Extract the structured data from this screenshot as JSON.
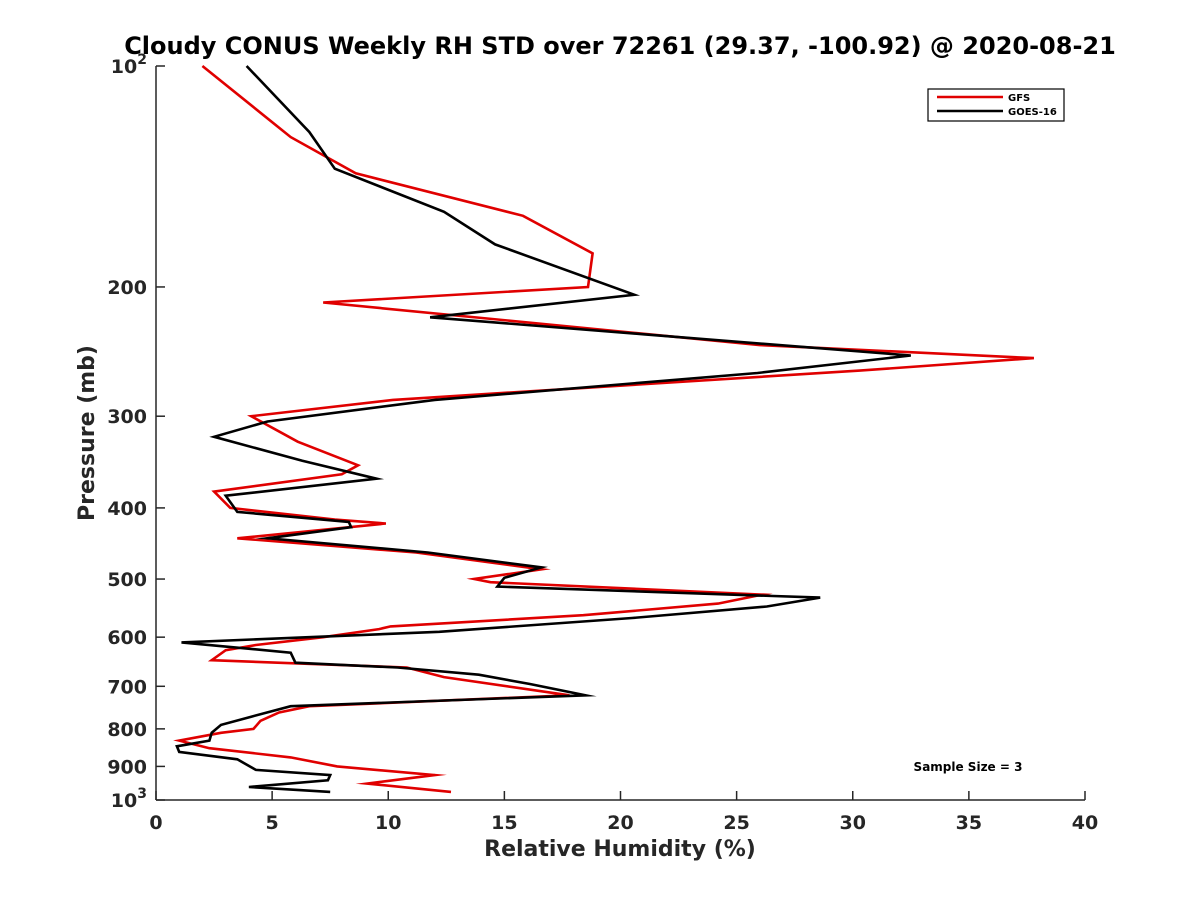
{
  "chart_data": {
    "type": "line",
    "title": "Cloudy CONUS Weekly RH STD over 72261 (29.37, -100.92) @ 2020-08-21",
    "xlabel": "Relative Humidity (%)",
    "ylabel": "Pressure (mb)",
    "xlim": [
      0,
      40
    ],
    "ylim": [
      100,
      1000
    ],
    "y_scale": "log",
    "y_reversed": true,
    "x_ticks": [
      0,
      5,
      10,
      15,
      20,
      25,
      30,
      35,
      40
    ],
    "x_tick_labels": [
      "0",
      "5",
      "10",
      "15",
      "20",
      "25",
      "30",
      "35",
      "40"
    ],
    "y_ticks": [
      100,
      200,
      300,
      400,
      500,
      600,
      700,
      800,
      900,
      1000
    ],
    "y_tick_labels": [
      {
        "base": "10",
        "exp": "2"
      },
      {
        "base": "200"
      },
      {
        "base": "300"
      },
      {
        "base": "400"
      },
      {
        "base": "500"
      },
      {
        "base": "600"
      },
      {
        "base": "700"
      },
      {
        "base": "800"
      },
      {
        "base": "900"
      },
      {
        "base": "10",
        "exp": "3"
      }
    ],
    "grid": false,
    "legend_position": "top-right",
    "annotation": "Sample Size = 3",
    "series": [
      {
        "name": "GFS",
        "color": "#e00000",
        "points": [
          [
            12.7,
            975
          ],
          [
            9.1,
            950
          ],
          [
            12.0,
            925
          ],
          [
            7.8,
            900
          ],
          [
            5.8,
            875
          ],
          [
            2.3,
            850
          ],
          [
            1.0,
            830
          ],
          [
            2.8,
            810
          ],
          [
            4.2,
            800
          ],
          [
            4.5,
            780
          ],
          [
            5.3,
            760
          ],
          [
            6.6,
            745
          ],
          [
            17.8,
            720
          ],
          [
            12.4,
            680
          ],
          [
            10.8,
            660
          ],
          [
            2.4,
            645
          ],
          [
            3.0,
            625
          ],
          [
            4.3,
            615
          ],
          [
            7.2,
            600
          ],
          [
            9.6,
            585
          ],
          [
            10.1,
            580
          ],
          [
            18.4,
            560
          ],
          [
            24.2,
            540
          ],
          [
            26.1,
            525
          ],
          [
            14.4,
            505
          ],
          [
            13.7,
            500
          ],
          [
            16.6,
            485
          ],
          [
            11.2,
            460
          ],
          [
            3.5,
            440
          ],
          [
            9.9,
            420
          ],
          [
            7.7,
            415
          ],
          [
            3.2,
            400
          ],
          [
            2.5,
            380
          ],
          [
            8.0,
            360
          ],
          [
            8.7,
            350
          ],
          [
            6.1,
            325
          ],
          [
            4.1,
            300
          ],
          [
            10.2,
            285
          ],
          [
            30.3,
            260
          ],
          [
            37.8,
            250
          ],
          [
            26.0,
            240
          ],
          [
            7.2,
            210
          ],
          [
            18.6,
            200
          ],
          [
            18.8,
            180
          ],
          [
            15.8,
            160
          ],
          [
            8.6,
            140
          ],
          [
            5.8,
            125
          ],
          [
            2.0,
            100
          ]
        ]
      },
      {
        "name": "GOES-16",
        "color": "#000000",
        "points": [
          [
            7.5,
            975
          ],
          [
            4.0,
            960
          ],
          [
            7.4,
            940
          ],
          [
            7.5,
            925
          ],
          [
            4.3,
            910
          ],
          [
            3.5,
            880
          ],
          [
            1.0,
            860
          ],
          [
            0.9,
            845
          ],
          [
            2.3,
            830
          ],
          [
            2.4,
            810
          ],
          [
            2.8,
            790
          ],
          [
            4.1,
            770
          ],
          [
            5.8,
            745
          ],
          [
            18.5,
            720
          ],
          [
            16.1,
            695
          ],
          [
            13.9,
            675
          ],
          [
            10.4,
            660
          ],
          [
            6.0,
            650
          ],
          [
            5.8,
            630
          ],
          [
            1.1,
            610
          ],
          [
            12.2,
            590
          ],
          [
            20.5,
            565
          ],
          [
            26.3,
            545
          ],
          [
            28.6,
            530
          ],
          [
            14.7,
            512
          ],
          [
            15.0,
            498
          ],
          [
            16.6,
            482
          ],
          [
            11.7,
            460
          ],
          [
            4.8,
            440
          ],
          [
            8.4,
            425
          ],
          [
            8.3,
            418
          ],
          [
            3.5,
            405
          ],
          [
            3.0,
            385
          ],
          [
            9.5,
            365
          ],
          [
            6.3,
            345
          ],
          [
            2.5,
            320
          ],
          [
            4.8,
            305
          ],
          [
            12.0,
            285
          ],
          [
            25.9,
            262
          ],
          [
            32.5,
            248
          ],
          [
            21.0,
            232
          ],
          [
            11.8,
            220
          ],
          [
            20.6,
            205
          ],
          [
            14.6,
            175
          ],
          [
            12.4,
            158
          ],
          [
            7.7,
            138
          ],
          [
            6.6,
            123
          ],
          [
            3.9,
            100
          ]
        ]
      }
    ]
  }
}
